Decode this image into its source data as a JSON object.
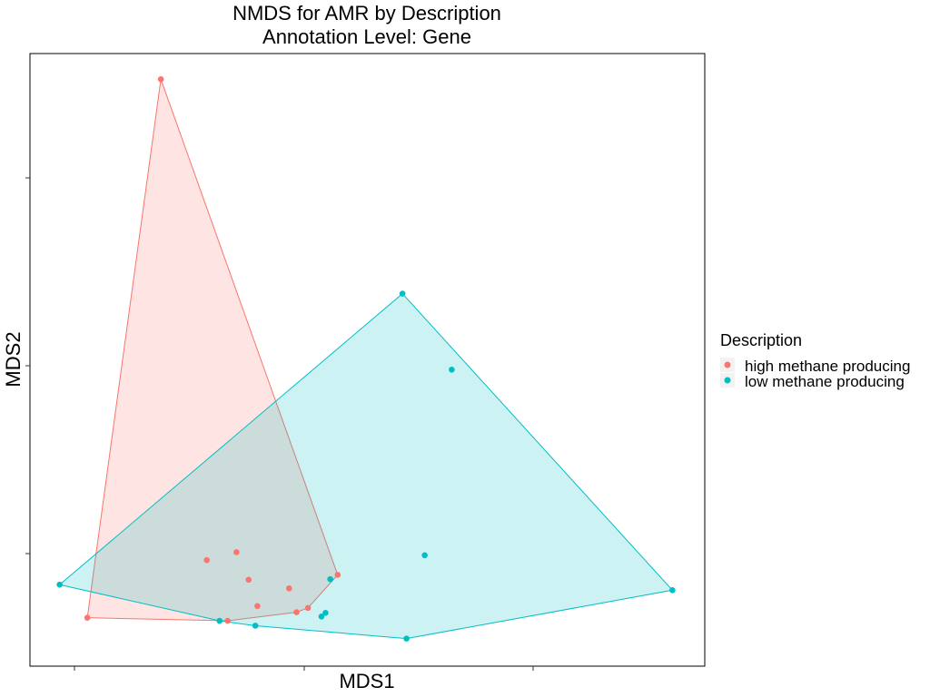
{
  "chart_data": {
    "type": "scatter",
    "title": "NMDS for AMR by Description",
    "subtitle": "Annotation Level: Gene",
    "xlabel": "MDS1",
    "ylabel": "MDS2",
    "xlim": [
      0,
      10
    ],
    "ylim": [
      0,
      10
    ],
    "grid": false,
    "legend": {
      "title": "Description",
      "position": "right"
    },
    "hulls": true,
    "series": [
      {
        "name": "high methane producing",
        "color": "#F8766D",
        "points": [
          {
            "x": 1.94,
            "y": 9.58
          },
          {
            "x": 0.85,
            "y": 0.79
          },
          {
            "x": 2.93,
            "y": 0.74
          },
          {
            "x": 2.62,
            "y": 1.73
          },
          {
            "x": 3.06,
            "y": 1.86
          },
          {
            "x": 3.24,
            "y": 1.41
          },
          {
            "x": 3.37,
            "y": 0.98
          },
          {
            "x": 3.84,
            "y": 1.27
          },
          {
            "x": 3.95,
            "y": 0.88
          },
          {
            "x": 4.12,
            "y": 0.95
          },
          {
            "x": 4.56,
            "y": 1.49
          }
        ]
      },
      {
        "name": "low methane producing",
        "color": "#00BFC4",
        "points": [
          {
            "x": 0.44,
            "y": 1.33
          },
          {
            "x": 2.81,
            "y": 0.74
          },
          {
            "x": 3.34,
            "y": 0.66
          },
          {
            "x": 4.32,
            "y": 0.81
          },
          {
            "x": 4.38,
            "y": 0.87
          },
          {
            "x": 4.45,
            "y": 1.42
          },
          {
            "x": 5.52,
            "y": 6.08
          },
          {
            "x": 5.58,
            "y": 0.45
          },
          {
            "x": 6.25,
            "y": 4.84
          },
          {
            "x": 5.85,
            "y": 1.81
          },
          {
            "x": 9.52,
            "y": 1.24
          }
        ]
      }
    ]
  }
}
